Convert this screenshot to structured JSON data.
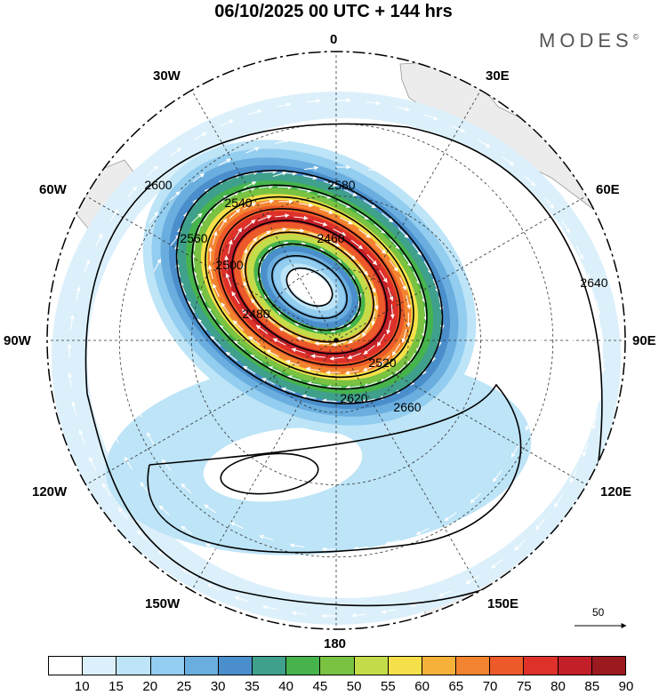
{
  "title": "06/10/2025  00 UTC  + 144 hrs",
  "brand": {
    "name": "MODES",
    "mark": "©"
  },
  "longitude_labels": [
    "0",
    "30E",
    "60E",
    "90E",
    "120E",
    "150E",
    "180",
    "150W",
    "120W",
    "90W",
    "60W",
    "30W"
  ],
  "contours": [
    {
      "label": "2460"
    },
    {
      "label": "2480"
    },
    {
      "label": "2500"
    },
    {
      "label": "2520"
    },
    {
      "label": "2540"
    },
    {
      "label": "2560"
    },
    {
      "label": "2580"
    },
    {
      "label": "2600"
    },
    {
      "label": "2620"
    },
    {
      "label": "2640"
    },
    {
      "label": "2660"
    }
  ],
  "reference_vector": {
    "value": "50"
  },
  "colorbar": {
    "ticks": [
      "10",
      "15",
      "20",
      "25",
      "30",
      "35",
      "40",
      "45",
      "50",
      "55",
      "60",
      "65",
      "70",
      "75",
      "80",
      "85",
      "90"
    ],
    "colors": [
      "#ffffff",
      "#dcf0fb",
      "#bde4f7",
      "#93cdef",
      "#6aaedf",
      "#4a8fcc",
      "#3fa08c",
      "#46b34c",
      "#7ac241",
      "#c4dc4a",
      "#f6e04a",
      "#f6b13b",
      "#f3842f",
      "#ec5a2a",
      "#de3129",
      "#c21f28",
      "#9a1a1f"
    ]
  }
}
